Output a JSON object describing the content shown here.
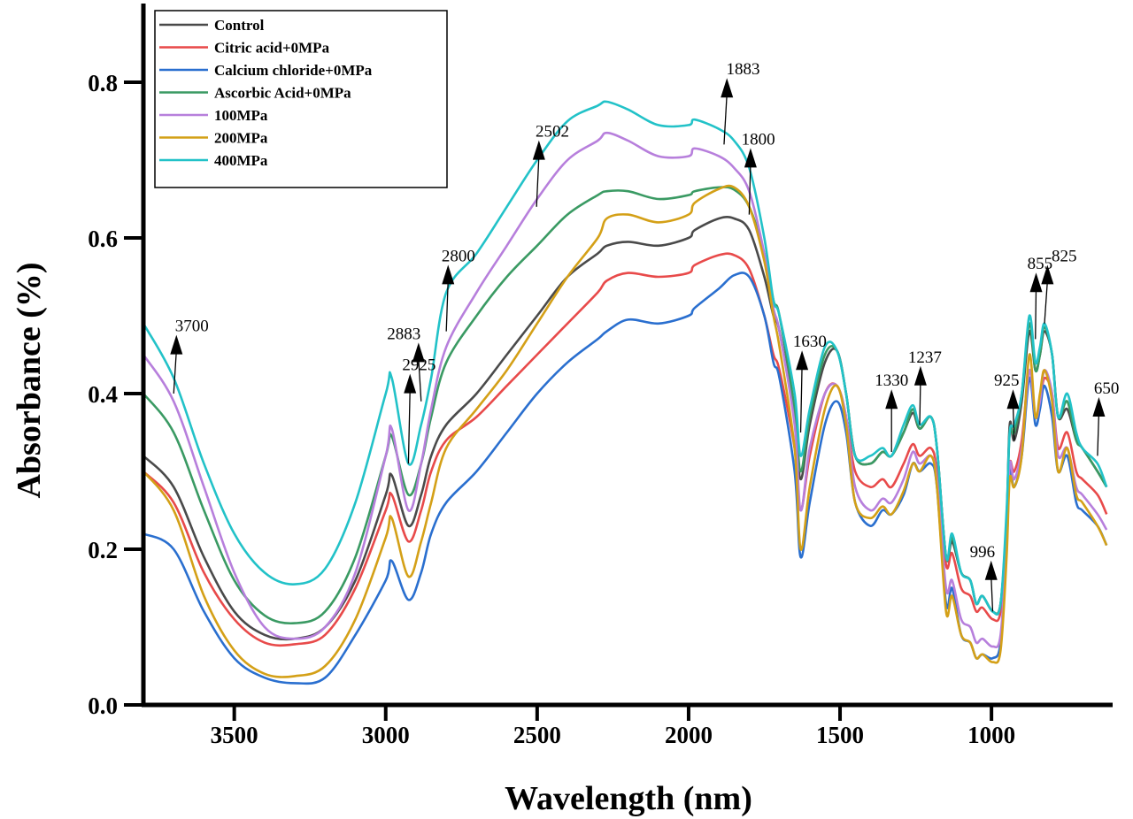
{
  "chart_data": {
    "type": "line",
    "title": "",
    "xlabel": "Wavelength (nm)",
    "ylabel": "Absorbance (%)",
    "xlim": [
      3800,
      600
    ],
    "ylim": [
      0.0,
      0.9
    ],
    "x_reversed": true,
    "xticks": [
      3500,
      3000,
      2500,
      2000,
      1500,
      1000
    ],
    "xtick_labels": [
      "3500",
      "3000",
      "2500",
      "2000",
      "1500",
      "1000"
    ],
    "yticks": [
      0.0,
      0.2,
      0.4,
      0.6,
      0.8
    ],
    "ytick_labels": [
      "0.0",
      "0.2",
      "0.4",
      "0.6",
      "0.8"
    ],
    "grid": false,
    "legend_position": "top-left",
    "x": [
      3800,
      3700,
      3600,
      3500,
      3400,
      3300,
      3200,
      3100,
      3000,
      2980,
      2925,
      2883,
      2850,
      2800,
      2700,
      2600,
      2500,
      2400,
      2300,
      2270,
      2200,
      2100,
      2000,
      1980,
      1900,
      1850,
      1800,
      1750,
      1720,
      1700,
      1650,
      1630,
      1600,
      1550,
      1510,
      1480,
      1450,
      1400,
      1360,
      1330,
      1290,
      1260,
      1237,
      1200,
      1180,
      1150,
      1130,
      1100,
      1070,
      1050,
      1030,
      996,
      970,
      950,
      940,
      925,
      900,
      875,
      855,
      840,
      825,
      800,
      780,
      750,
      720,
      700,
      650,
      620
    ],
    "series": [
      {
        "name": "Control",
        "color": "#4a4a4a",
        "values": [
          0.32,
          0.28,
          0.19,
          0.12,
          0.09,
          0.085,
          0.1,
          0.16,
          0.27,
          0.295,
          0.23,
          0.27,
          0.32,
          0.36,
          0.4,
          0.45,
          0.5,
          0.55,
          0.58,
          0.59,
          0.595,
          0.59,
          0.6,
          0.61,
          0.625,
          0.625,
          0.61,
          0.55,
          0.5,
          0.48,
          0.37,
          0.29,
          0.36,
          0.44,
          0.455,
          0.4,
          0.32,
          0.31,
          0.325,
          0.32,
          0.35,
          0.375,
          0.355,
          0.37,
          0.33,
          0.19,
          0.21,
          0.17,
          0.16,
          0.13,
          0.14,
          0.12,
          0.13,
          0.24,
          0.36,
          0.34,
          0.39,
          0.48,
          0.43,
          0.45,
          0.48,
          0.45,
          0.37,
          0.38,
          0.34,
          0.33,
          0.3,
          0.28
        ]
      },
      {
        "name": "Citric acid+0MPa",
        "color": "#e84a4a",
        "values": [
          0.3,
          0.26,
          0.17,
          0.11,
          0.08,
          0.078,
          0.09,
          0.15,
          0.25,
          0.27,
          0.21,
          0.25,
          0.3,
          0.34,
          0.37,
          0.41,
          0.45,
          0.49,
          0.53,
          0.545,
          0.555,
          0.55,
          0.555,
          0.565,
          0.578,
          0.578,
          0.56,
          0.5,
          0.45,
          0.43,
          0.33,
          0.25,
          0.32,
          0.4,
          0.41,
          0.37,
          0.3,
          0.28,
          0.29,
          0.28,
          0.31,
          0.335,
          0.32,
          0.33,
          0.3,
          0.18,
          0.195,
          0.15,
          0.14,
          0.12,
          0.125,
          0.11,
          0.12,
          0.22,
          0.31,
          0.3,
          0.34,
          0.43,
          0.37,
          0.39,
          0.42,
          0.4,
          0.33,
          0.35,
          0.3,
          0.29,
          0.27,
          0.245
        ]
      },
      {
        "name": "Calcium chloride+0MPa",
        "color": "#2a6fcf",
        "values": [
          0.22,
          0.2,
          0.12,
          0.06,
          0.035,
          0.028,
          0.035,
          0.09,
          0.16,
          0.185,
          0.135,
          0.17,
          0.22,
          0.26,
          0.3,
          0.35,
          0.4,
          0.44,
          0.47,
          0.48,
          0.495,
          0.49,
          0.5,
          0.51,
          0.535,
          0.552,
          0.55,
          0.5,
          0.44,
          0.42,
          0.3,
          0.19,
          0.26,
          0.36,
          0.39,
          0.35,
          0.26,
          0.23,
          0.25,
          0.245,
          0.27,
          0.31,
          0.3,
          0.31,
          0.28,
          0.13,
          0.15,
          0.09,
          0.08,
          0.06,
          0.065,
          0.06,
          0.08,
          0.2,
          0.3,
          0.28,
          0.32,
          0.42,
          0.36,
          0.38,
          0.41,
          0.37,
          0.3,
          0.32,
          0.26,
          0.25,
          0.23,
          0.205
        ]
      },
      {
        "name": "Ascorbic Acid+0MPa",
        "color": "#3a9a63",
        "values": [
          0.4,
          0.35,
          0.25,
          0.16,
          0.115,
          0.105,
          0.12,
          0.19,
          0.32,
          0.345,
          0.27,
          0.31,
          0.37,
          0.44,
          0.5,
          0.55,
          0.59,
          0.63,
          0.655,
          0.66,
          0.66,
          0.65,
          0.655,
          0.66,
          0.665,
          0.662,
          0.64,
          0.58,
          0.52,
          0.5,
          0.38,
          0.3,
          0.37,
          0.45,
          0.455,
          0.4,
          0.32,
          0.31,
          0.325,
          0.32,
          0.35,
          0.38,
          0.355,
          0.37,
          0.33,
          0.19,
          0.215,
          0.17,
          0.16,
          0.13,
          0.14,
          0.12,
          0.13,
          0.24,
          0.35,
          0.35,
          0.4,
          0.49,
          0.43,
          0.45,
          0.485,
          0.45,
          0.37,
          0.39,
          0.34,
          0.33,
          0.3,
          0.28
        ]
      },
      {
        "name": "100MPa",
        "color": "#b77fdc",
        "values": [
          0.45,
          0.39,
          0.28,
          0.17,
          0.1,
          0.085,
          0.1,
          0.17,
          0.32,
          0.355,
          0.25,
          0.31,
          0.38,
          0.46,
          0.53,
          0.59,
          0.65,
          0.7,
          0.725,
          0.735,
          0.725,
          0.705,
          0.705,
          0.715,
          0.705,
          0.69,
          0.66,
          0.58,
          0.51,
          0.48,
          0.36,
          0.25,
          0.33,
          0.4,
          0.41,
          0.37,
          0.28,
          0.25,
          0.265,
          0.26,
          0.29,
          0.325,
          0.31,
          0.32,
          0.29,
          0.15,
          0.16,
          0.11,
          0.1,
          0.08,
          0.085,
          0.075,
          0.09,
          0.21,
          0.31,
          0.29,
          0.33,
          0.43,
          0.37,
          0.39,
          0.43,
          0.4,
          0.32,
          0.33,
          0.28,
          0.27,
          0.245,
          0.225
        ]
      },
      {
        "name": "200MPa",
        "color": "#d4a017",
        "values": [
          0.3,
          0.25,
          0.14,
          0.07,
          0.04,
          0.037,
          0.05,
          0.11,
          0.215,
          0.24,
          0.165,
          0.21,
          0.26,
          0.33,
          0.38,
          0.43,
          0.49,
          0.55,
          0.6,
          0.625,
          0.63,
          0.62,
          0.63,
          0.645,
          0.663,
          0.665,
          0.64,
          0.57,
          0.5,
          0.46,
          0.33,
          0.2,
          0.28,
          0.38,
          0.41,
          0.36,
          0.26,
          0.24,
          0.255,
          0.245,
          0.275,
          0.31,
          0.3,
          0.32,
          0.28,
          0.12,
          0.14,
          0.09,
          0.08,
          0.06,
          0.065,
          0.055,
          0.07,
          0.19,
          0.29,
          0.28,
          0.32,
          0.45,
          0.37,
          0.4,
          0.43,
          0.39,
          0.3,
          0.33,
          0.27,
          0.26,
          0.23,
          0.205
        ]
      },
      {
        "name": "400MPa",
        "color": "#22c2c8",
        "values": [
          0.49,
          0.42,
          0.31,
          0.22,
          0.17,
          0.155,
          0.175,
          0.26,
          0.4,
          0.42,
          0.31,
          0.36,
          0.42,
          0.53,
          0.58,
          0.64,
          0.7,
          0.75,
          0.77,
          0.775,
          0.765,
          0.745,
          0.745,
          0.752,
          0.74,
          0.725,
          0.69,
          0.6,
          0.52,
          0.5,
          0.4,
          0.32,
          0.38,
          0.46,
          0.455,
          0.4,
          0.32,
          0.32,
          0.33,
          0.32,
          0.36,
          0.385,
          0.36,
          0.37,
          0.33,
          0.19,
          0.22,
          0.17,
          0.16,
          0.13,
          0.14,
          0.12,
          0.13,
          0.25,
          0.35,
          0.36,
          0.4,
          0.5,
          0.44,
          0.46,
          0.49,
          0.45,
          0.37,
          0.4,
          0.35,
          0.33,
          0.31,
          0.28
        ]
      }
    ],
    "annotations": [
      {
        "text": "3700",
        "x": 3700,
        "y": 0.4,
        "label_x": 3640,
        "label_y": 0.48
      },
      {
        "text": "2883",
        "x": 2883,
        "y": 0.39,
        "label_x": 2940,
        "label_y": 0.47
      },
      {
        "text": "2925",
        "x": 2925,
        "y": 0.31,
        "label_x": 2890,
        "label_y": 0.43
      },
      {
        "text": "2800",
        "x": 2800,
        "y": 0.48,
        "label_x": 2760,
        "label_y": 0.57
      },
      {
        "text": "2502",
        "x": 2502,
        "y": 0.64,
        "label_x": 2450,
        "label_y": 0.73
      },
      {
        "text": "1883",
        "x": 1883,
        "y": 0.72,
        "label_x": 1820,
        "label_y": 0.81
      },
      {
        "text": "1800",
        "x": 1800,
        "y": 0.63,
        "label_x": 1770,
        "label_y": 0.72
      },
      {
        "text": "1630",
        "x": 1630,
        "y": 0.35,
        "label_x": 1600,
        "label_y": 0.46
      },
      {
        "text": "1330",
        "x": 1330,
        "y": 0.325,
        "label_x": 1330,
        "label_y": 0.41
      },
      {
        "text": "1237",
        "x": 1237,
        "y": 0.36,
        "label_x": 1220,
        "label_y": 0.44
      },
      {
        "text": "996",
        "x": 996,
        "y": 0.12,
        "label_x": 1030,
        "label_y": 0.19
      },
      {
        "text": "925",
        "x": 925,
        "y": 0.34,
        "label_x": 950,
        "label_y": 0.41
      },
      {
        "text": "855",
        "x": 855,
        "y": 0.47,
        "label_x": 840,
        "label_y": 0.56
      },
      {
        "text": "825",
        "x": 825,
        "y": 0.49,
        "label_x": 760,
        "label_y": 0.57
      },
      {
        "text": "650",
        "x": 650,
        "y": 0.32,
        "label_x": 620,
        "label_y": 0.4
      }
    ]
  }
}
